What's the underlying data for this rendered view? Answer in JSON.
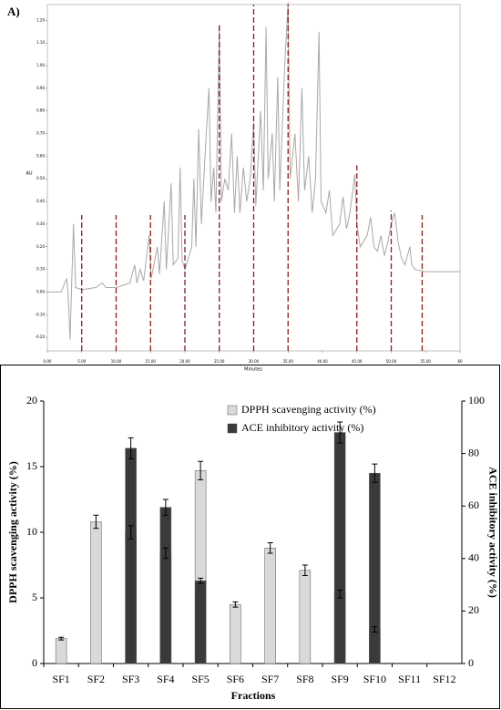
{
  "chart_data": [
    {
      "type": "line",
      "title": "A)",
      "x_label": "Minutes",
      "y_label": "AU",
      "x": [
        0,
        2,
        2.8,
        3.0,
        3.3,
        3.5,
        3.8,
        4.1,
        5,
        7,
        8,
        8.5,
        10,
        11,
        12,
        12.7,
        13,
        13.5,
        14,
        14.8,
        15.1,
        16,
        16.3,
        17,
        17.3,
        18,
        18.3,
        19,
        19.3,
        19.6,
        20,
        21,
        21.3,
        21.6,
        22,
        22.4,
        23,
        23.5,
        23.8,
        24.2,
        24.5,
        25,
        25.3,
        25.8,
        26.3,
        26.8,
        27.2,
        27.6,
        28,
        28.5,
        29,
        29.5,
        30,
        30.3,
        31,
        31.4,
        31.8,
        32.1,
        32.7,
        33,
        33.5,
        33.8,
        34.5,
        35,
        35.3,
        36,
        36.5,
        37,
        37.4,
        38,
        38.5,
        39,
        39.5,
        39.8,
        40.5,
        41,
        41.5,
        42.5,
        43,
        43.5,
        44,
        44.7,
        45,
        45.5,
        46.5,
        47,
        47.5,
        48,
        48.5,
        49,
        49.5,
        50,
        50.5,
        51,
        51.5,
        52,
        52.7,
        53,
        53.5,
        55,
        60
      ],
      "values": [
        0.0,
        0.0,
        0.06,
        0.0,
        -0.21,
        0.0,
        0.3,
        0.02,
        0.01,
        0.02,
        0.04,
        0.02,
        0.02,
        0.03,
        0.04,
        0.12,
        0.04,
        0.1,
        0.05,
        0.25,
        0.06,
        0.2,
        0.08,
        0.4,
        0.1,
        0.48,
        0.12,
        0.15,
        0.55,
        0.14,
        0.1,
        0.2,
        0.5,
        0.2,
        0.72,
        0.3,
        0.65,
        0.9,
        0.4,
        0.55,
        0.35,
        1.18,
        0.4,
        0.5,
        0.45,
        0.7,
        0.35,
        0.6,
        0.35,
        0.55,
        0.4,
        0.5,
        0.75,
        0.38,
        0.8,
        0.45,
        1.17,
        0.5,
        0.7,
        0.4,
        0.95,
        0.45,
        1.0,
        1.28,
        0.5,
        0.7,
        0.4,
        0.9,
        0.45,
        0.6,
        0.35,
        0.5,
        1.15,
        0.4,
        0.35,
        0.45,
        0.25,
        0.3,
        0.42,
        0.28,
        0.35,
        0.52,
        0.3,
        0.2,
        0.25,
        0.33,
        0.2,
        0.18,
        0.25,
        0.16,
        0.22,
        0.3,
        0.35,
        0.22,
        0.15,
        0.12,
        0.2,
        0.12,
        0.1,
        0.09,
        0.09
      ],
      "color": "#a8a8a8",
      "fraction_markers": {
        "x": [
          5,
          10,
          15,
          20,
          25,
          30,
          35,
          45,
          50,
          54.5
        ],
        "top": [
          0.34,
          0.34,
          0.34,
          0.34,
          1.18,
          1.27,
          1.27,
          0.56,
          0.36,
          0.34
        ],
        "color": "#8b1a1a"
      },
      "xlim": [
        0,
        60
      ],
      "xticks": [
        {
          "value": 0,
          "label": "0.00"
        },
        {
          "value": 5,
          "label": "5.00"
        },
        {
          "value": 10,
          "label": "10.00"
        },
        {
          "value": 15,
          "label": "15.00"
        },
        {
          "value": 20,
          "label": "20.00"
        },
        {
          "value": 25,
          "label": "25.00"
        },
        {
          "value": 30,
          "label": "30.00"
        },
        {
          "value": 35,
          "label": "35.00"
        },
        {
          "value": 40,
          "label": "40.00"
        },
        {
          "value": 45,
          "label": "45.00"
        },
        {
          "value": 50,
          "label": "50.00"
        },
        {
          "value": 55,
          "label": "55.00"
        },
        60
      ],
      "ylim": [
        -0.26,
        1.27
      ],
      "yticks": [
        {
          "value": -0.2,
          "label": "-0.20"
        },
        {
          "value": -0.1,
          "label": "-0.10"
        },
        {
          "value": 0,
          "label": "0.00"
        },
        {
          "value": 0.1,
          "label": "0.10"
        },
        {
          "value": 0.2,
          "label": "0.20"
        },
        {
          "value": 0.3,
          "label": "0.30"
        },
        {
          "value": 0.4,
          "label": "0.40"
        },
        {
          "value": 0.5,
          "label": "0.50"
        },
        {
          "value": 0.6,
          "label": "0.60"
        },
        {
          "value": 0.7,
          "label": "0.70"
        },
        {
          "value": 0.8,
          "label": "0.80"
        },
        {
          "value": 0.9,
          "label": "0.90"
        },
        {
          "value": 1.0,
          "label": "1.00"
        },
        {
          "value": 1.1,
          "label": "1.10"
        },
        {
          "value": 1.2,
          "label": "1.20"
        }
      ]
    },
    {
      "type": "bar",
      "x_label": "Fractions",
      "y_label": "DPPH scavenging activity (%)",
      "y2_label": "ACE inhibitory activity (%)",
      "categories": [
        "SF1",
        "SF2",
        "SF3",
        "SF4",
        "SF5",
        "SF6",
        "SF7",
        "SF8",
        "SF9",
        "SF10",
        "SF11",
        "SF12"
      ],
      "series": [
        {
          "name": "DPPH scavenging activity (%)",
          "color": "#d9d9d9",
          "values": [
            1.9,
            10.8,
            10.0,
            8.4,
            14.7,
            4.5,
            8.8,
            7.1,
            5.3,
            2.6,
            0,
            0
          ],
          "errors": [
            0.1,
            0.5,
            0.5,
            0.4,
            0.7,
            0.2,
            0.4,
            0.4,
            0.3,
            0.2,
            0,
            0
          ]
        },
        {
          "name": "ACE inhibitory activity (%)",
          "color": "#3a3a3a",
          "axis": "y2",
          "values": [
            null,
            null,
            82,
            59.5,
            31.5,
            null,
            null,
            null,
            88,
            72.5,
            null,
            null
          ],
          "errors": [
            null,
            null,
            4,
            3,
            1,
            null,
            null,
            null,
            4,
            3.5,
            null,
            null
          ]
        }
      ],
      "ylim": [
        0,
        20
      ],
      "yticks": [
        0,
        5,
        10,
        15,
        20
      ],
      "y2lim": [
        0,
        100
      ],
      "y2ticks": [
        0,
        20,
        40,
        60,
        80,
        100
      ],
      "legend": "top"
    }
  ]
}
